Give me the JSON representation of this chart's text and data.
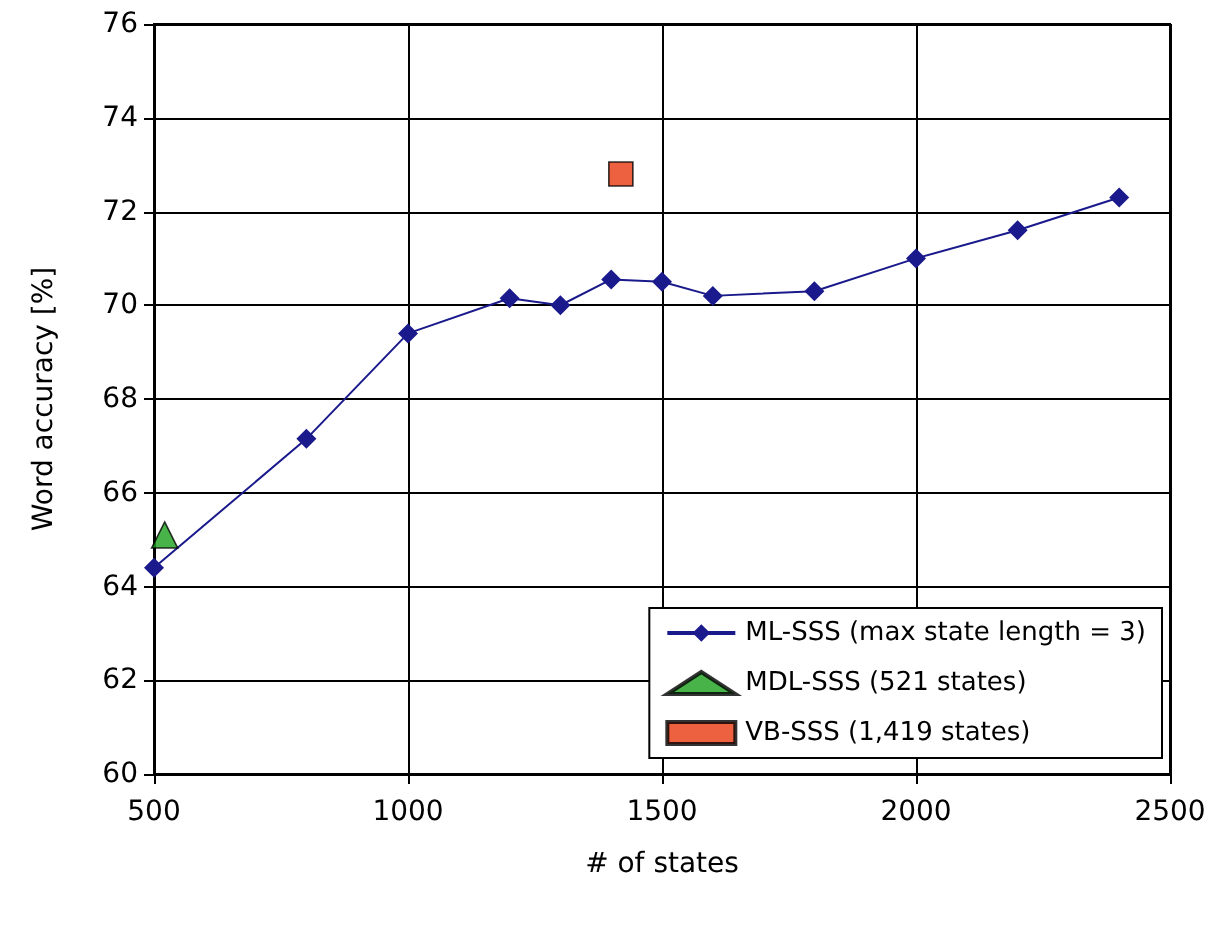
{
  "chart_data": {
    "type": "line",
    "xlabel": "# of states",
    "ylabel": "Word accuracy [%]",
    "xlim": [
      500,
      2500
    ],
    "xticks": [
      500,
      1000,
      1500,
      2000,
      2500
    ],
    "ylim": [
      60,
      76
    ],
    "yticks": [
      60,
      62,
      64,
      66,
      68,
      70,
      72,
      74,
      76
    ],
    "grid": true,
    "legend": "bottom right",
    "series": [
      {
        "name": "ML-SSS (max state length = 3)",
        "marker": "diamond",
        "color": "#1a1a8c",
        "x": [
          500,
          800,
          1000,
          1200,
          1300,
          1400,
          1500,
          1600,
          1800,
          2000,
          2200,
          2400
        ],
        "values": [
          64.4,
          67.15,
          69.4,
          70.15,
          70.0,
          70.55,
          70.5,
          70.2,
          70.3,
          71.0,
          71.6,
          72.3
        ]
      },
      {
        "name": "MDL-SSS (521 states)",
        "type": "scatter",
        "marker": "triangle",
        "color": "#1aa01a",
        "x": [
          521
        ],
        "values": [
          65.1
        ]
      },
      {
        "name": "VB-SSS (1,419 states)",
        "type": "scatter",
        "marker": "square",
        "color": "#e83a10",
        "x": [
          1419
        ],
        "values": [
          72.8
        ]
      }
    ]
  }
}
